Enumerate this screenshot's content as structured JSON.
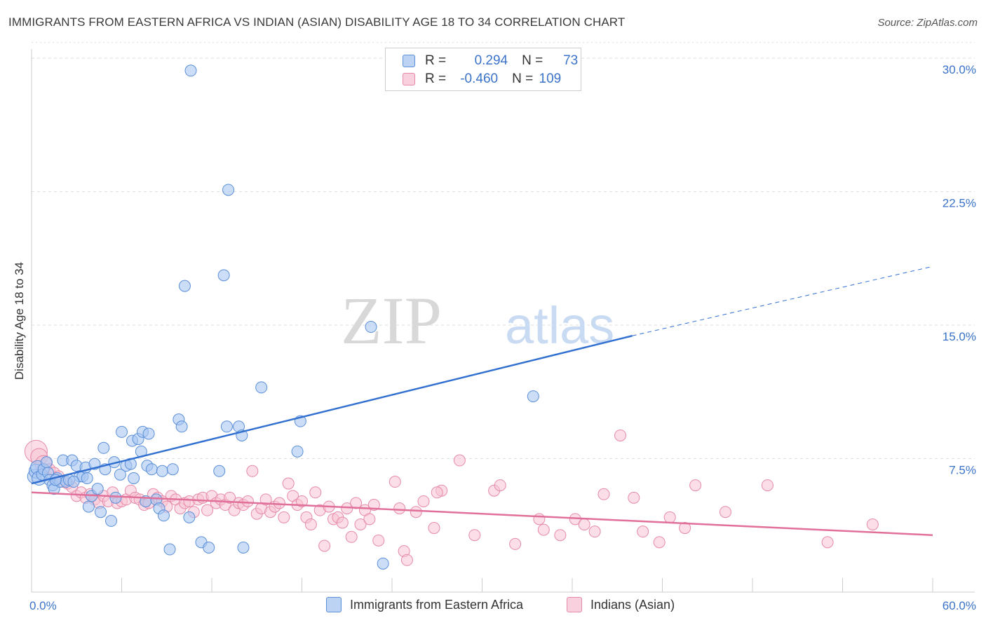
{
  "title": "IMMIGRANTS FROM EASTERN AFRICA VS INDIAN (ASIAN) DISABILITY AGE 18 TO 34 CORRELATION CHART",
  "source": "Source: ZipAtlas.com",
  "watermark": {
    "zip": "ZIP",
    "atlas": "atlas"
  },
  "legend_top": [
    {
      "r_label": "R =",
      "r_value": "0.294",
      "n_label": "N =",
      "n_value": "73"
    },
    {
      "r_label": "R =",
      "r_value": "-0.460",
      "n_label": "N =",
      "n_value": "109"
    }
  ],
  "colors": {
    "blue_fill": "#a9c7f2",
    "blue_stroke": "#5b8fd8",
    "blue_line": "#3170d0",
    "pink_fill": "#f7c3d4",
    "pink_stroke": "#e68aa8",
    "pink_line": "#e0709a",
    "tick_blue": "#3b73c9",
    "grid": "#dddddd"
  },
  "chart_data": {
    "type": "scatter",
    "title": "IMMIGRANTS FROM EASTERN AFRICA VS INDIAN (ASIAN) DISABILITY AGE 18 TO 34 CORRELATION CHART",
    "xlabel": "",
    "ylabel": "Disability Age 18 to 34",
    "xlim": [
      0,
      60
    ],
    "ylim": [
      0,
      31
    ],
    "x_tick_labels": [
      "0.0%",
      "60.0%"
    ],
    "y_ticks": [
      7.5,
      15,
      22.5,
      30
    ],
    "y_tick_labels": [
      "7.5%",
      "15.0%",
      "22.5%",
      "30.0%"
    ],
    "grid": true,
    "legend_position": "bottom",
    "series": [
      {
        "name": "Immigrants from Eastern Africa",
        "color": "#a9c7f2",
        "trend": {
          "x0": 0,
          "y0": 6.1,
          "x1": 40,
          "y1": 14.4,
          "dashed_to_x": 60,
          "dashed_to_y": 18.3
        },
        "points": [
          [
            0.2,
            6.5
          ],
          [
            0.3,
            6.8
          ],
          [
            0.4,
            7.0
          ],
          [
            0.5,
            6.4
          ],
          [
            0.7,
            6.6
          ],
          [
            0.8,
            6.9
          ],
          [
            1.0,
            7.3
          ],
          [
            1.1,
            6.7
          ],
          [
            1.2,
            6.3
          ],
          [
            1.4,
            6.0
          ],
          [
            1.5,
            5.8
          ],
          [
            1.7,
            6.4
          ],
          [
            1.9,
            6.2
          ],
          [
            2.1,
            7.4
          ],
          [
            2.3,
            6.2
          ],
          [
            2.5,
            6.3
          ],
          [
            2.7,
            7.4
          ],
          [
            3.0,
            7.1
          ],
          [
            3.2,
            6.5
          ],
          [
            3.4,
            6.5
          ],
          [
            3.6,
            7.0
          ],
          [
            3.8,
            4.8
          ],
          [
            4.0,
            5.4
          ],
          [
            4.2,
            7.2
          ],
          [
            4.4,
            5.8
          ],
          [
            4.6,
            4.5
          ],
          [
            4.8,
            8.1
          ],
          [
            4.9,
            6.9
          ],
          [
            5.3,
            4.0
          ],
          [
            5.5,
            7.3
          ],
          [
            5.6,
            5.3
          ],
          [
            5.9,
            6.6
          ],
          [
            6.0,
            9.0
          ],
          [
            6.3,
            7.1
          ],
          [
            6.6,
            7.2
          ],
          [
            6.7,
            8.5
          ],
          [
            6.8,
            6.4
          ],
          [
            7.1,
            8.6
          ],
          [
            7.3,
            7.9
          ],
          [
            7.4,
            9.0
          ],
          [
            7.6,
            5.1
          ],
          [
            7.7,
            7.1
          ],
          [
            7.8,
            8.9
          ],
          [
            8.0,
            6.9
          ],
          [
            8.3,
            5.2
          ],
          [
            8.5,
            4.7
          ],
          [
            8.7,
            6.8
          ],
          [
            8.8,
            4.3
          ],
          [
            9.2,
            2.4
          ],
          [
            9.4,
            6.9
          ],
          [
            9.8,
            9.7
          ],
          [
            10.0,
            9.3
          ],
          [
            10.2,
            17.2
          ],
          [
            10.5,
            4.2
          ],
          [
            10.6,
            29.3
          ],
          [
            11.3,
            2.8
          ],
          [
            11.8,
            2.5
          ],
          [
            12.5,
            6.8
          ],
          [
            12.8,
            17.8
          ],
          [
            13.0,
            9.3
          ],
          [
            13.1,
            22.6
          ],
          [
            13.8,
            9.3
          ],
          [
            14.0,
            8.8
          ],
          [
            14.1,
            2.5
          ],
          [
            15.3,
            11.5
          ],
          [
            17.7,
            7.9
          ],
          [
            17.9,
            9.6
          ],
          [
            22.6,
            14.9
          ],
          [
            23.4,
            1.6
          ],
          [
            33.4,
            11.0
          ],
          [
            3.7,
            6.4
          ],
          [
            2.8,
            6.2
          ],
          [
            1.6,
            6.3
          ]
        ]
      },
      {
        "name": "Indians (Asian)",
        "color": "#f7c3d4",
        "trend": {
          "x0": 0,
          "y0": 5.6,
          "x1": 60,
          "y1": 3.2
        },
        "points": [
          [
            0.3,
            7.9
          ],
          [
            0.5,
            7.6
          ],
          [
            0.8,
            7.2
          ],
          [
            1.2,
            6.9
          ],
          [
            1.5,
            6.7
          ],
          [
            1.8,
            6.5
          ],
          [
            2.1,
            6.2
          ],
          [
            2.4,
            6.1
          ],
          [
            2.7,
            5.9
          ],
          [
            3.0,
            5.4
          ],
          [
            3.3,
            5.6
          ],
          [
            3.6,
            5.3
          ],
          [
            3.9,
            5.5
          ],
          [
            4.2,
            5.2
          ],
          [
            4.5,
            5.0
          ],
          [
            4.8,
            5.4
          ],
          [
            5.1,
            5.1
          ],
          [
            5.4,
            5.6
          ],
          [
            5.7,
            5.0
          ],
          [
            6.0,
            5.1
          ],
          [
            6.3,
            5.2
          ],
          [
            6.6,
            5.7
          ],
          [
            6.9,
            5.3
          ],
          [
            7.2,
            5.2
          ],
          [
            7.5,
            4.9
          ],
          [
            7.8,
            5.0
          ],
          [
            8.1,
            5.5
          ],
          [
            8.4,
            5.3
          ],
          [
            8.7,
            5.1
          ],
          [
            9.0,
            4.8
          ],
          [
            9.3,
            5.4
          ],
          [
            9.6,
            5.2
          ],
          [
            9.9,
            4.7
          ],
          [
            10.2,
            5.0
          ],
          [
            10.5,
            5.1
          ],
          [
            10.8,
            4.5
          ],
          [
            11.1,
            5.2
          ],
          [
            11.4,
            5.3
          ],
          [
            11.7,
            4.6
          ],
          [
            12.0,
            5.4
          ],
          [
            12.3,
            5.0
          ],
          [
            12.6,
            5.2
          ],
          [
            12.9,
            4.9
          ],
          [
            13.2,
            5.3
          ],
          [
            13.5,
            4.6
          ],
          [
            13.8,
            5.0
          ],
          [
            14.1,
            4.9
          ],
          [
            14.4,
            5.1
          ],
          [
            14.7,
            6.8
          ],
          [
            15.0,
            4.4
          ],
          [
            15.3,
            4.7
          ],
          [
            15.6,
            5.2
          ],
          [
            15.9,
            4.5
          ],
          [
            16.2,
            4.8
          ],
          [
            16.5,
            5.0
          ],
          [
            16.8,
            4.2
          ],
          [
            17.1,
            6.1
          ],
          [
            17.4,
            5.4
          ],
          [
            17.7,
            4.9
          ],
          [
            18.0,
            5.1
          ],
          [
            18.3,
            4.2
          ],
          [
            18.6,
            3.8
          ],
          [
            18.9,
            5.6
          ],
          [
            19.2,
            4.6
          ],
          [
            19.5,
            2.6
          ],
          [
            19.8,
            4.8
          ],
          [
            20.1,
            4.1
          ],
          [
            20.4,
            4.2
          ],
          [
            20.7,
            3.9
          ],
          [
            21.0,
            4.7
          ],
          [
            21.3,
            3.1
          ],
          [
            21.6,
            5.0
          ],
          [
            21.9,
            3.8
          ],
          [
            22.2,
            4.6
          ],
          [
            22.5,
            4.1
          ],
          [
            22.8,
            4.9
          ],
          [
            23.1,
            2.9
          ],
          [
            24.2,
            6.2
          ],
          [
            24.5,
            4.7
          ],
          [
            24.8,
            2.3
          ],
          [
            25.0,
            1.8
          ],
          [
            25.6,
            4.5
          ],
          [
            26.1,
            5.1
          ],
          [
            26.8,
            3.6
          ],
          [
            27.3,
            5.7
          ],
          [
            28.5,
            7.4
          ],
          [
            29.5,
            3.2
          ],
          [
            30.8,
            5.7
          ],
          [
            31.2,
            6.0
          ],
          [
            32.2,
            2.7
          ],
          [
            33.8,
            4.1
          ],
          [
            34.1,
            3.5
          ],
          [
            35.2,
            3.2
          ],
          [
            36.2,
            4.1
          ],
          [
            36.8,
            3.8
          ],
          [
            37.5,
            3.4
          ],
          [
            38.1,
            5.5
          ],
          [
            39.2,
            8.8
          ],
          [
            40.1,
            5.3
          ],
          [
            40.7,
            3.4
          ],
          [
            41.8,
            2.8
          ],
          [
            42.5,
            4.2
          ],
          [
            43.5,
            3.6
          ],
          [
            44.2,
            6.0
          ],
          [
            46.2,
            4.5
          ],
          [
            49.0,
            6.0
          ],
          [
            53.0,
            2.8
          ],
          [
            56.0,
            3.8
          ],
          [
            27.0,
            5.6
          ]
        ]
      }
    ]
  },
  "legend_bottom": [
    {
      "label": "Immigrants from Eastern Africa"
    },
    {
      "label": "Indians (Asian)"
    }
  ]
}
